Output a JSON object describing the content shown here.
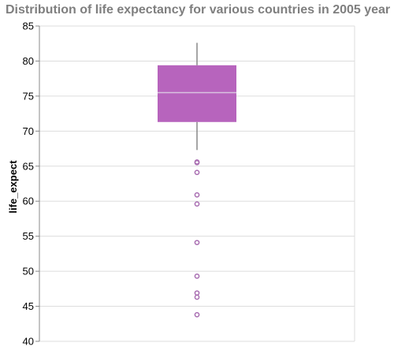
{
  "chart_data": {
    "type": "boxplot",
    "title": "Distribution of life expectancy for various countries in 2005 year",
    "xlabel": "",
    "ylabel": "life_expect",
    "ylim": [
      40,
      85
    ],
    "yticks": [
      40,
      45,
      50,
      55,
      60,
      65,
      70,
      75,
      80,
      85
    ],
    "grid": true,
    "colors": {
      "box": "#b764bd",
      "median": "#d9c2e0",
      "whisker": "#888888",
      "outlier": "#a86db1",
      "grid": "#dddddd"
    },
    "box": {
      "min": 67.3,
      "q1": 71.3,
      "median": 75.5,
      "q3": 79.4,
      "max": 82.6
    },
    "outliers": [
      65.6,
      65.5,
      64.1,
      60.9,
      59.6,
      54.1,
      49.3,
      46.9,
      46.3,
      43.8
    ]
  }
}
